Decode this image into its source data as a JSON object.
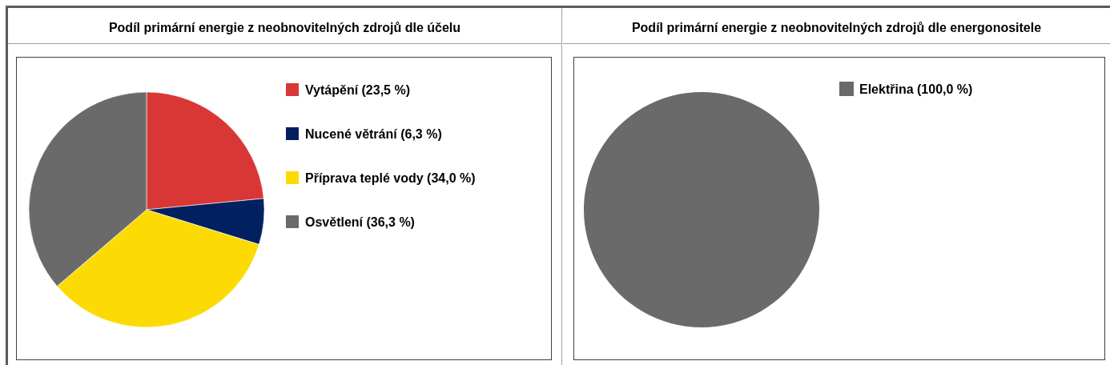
{
  "chart_data": [
    {
      "type": "pie",
      "title": "Podíl primární energie z neobnovitelných zdrojů dle účelu",
      "categories": [
        "Vytápění (23,5 %)",
        "Nucené větrání (6,3 %)",
        "Příprava teplé vody (34,0 %)",
        "Osvětlení (36,3 %)"
      ],
      "values": [
        23.5,
        6.3,
        34.0,
        36.3
      ],
      "colors": [
        "#d93636",
        "#012060",
        "#fcdb05",
        "#6a6a6b"
      ],
      "legend": "right"
    },
    {
      "type": "pie",
      "title": "Podíl primární energie z neobnovitelných zdrojů dle energonositele",
      "categories": [
        "Elektřina (100,0 %)"
      ],
      "values": [
        100.0
      ],
      "colors": [
        "#6a6a6b"
      ],
      "legend": "right"
    }
  ]
}
